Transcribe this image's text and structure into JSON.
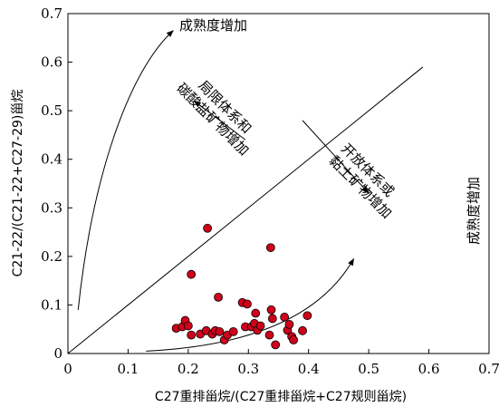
{
  "chart_data": {
    "type": "scatter",
    "title": "",
    "xlabel": "C27重排甾烷/(C27重排甾烷+C27规则甾烷)",
    "ylabel": "C21-22/(C21-22+C27-29)甾烷",
    "xlim": [
      0,
      0.7
    ],
    "ylim": [
      0,
      0.7
    ],
    "x_ticks": [
      "0",
      "0.1",
      "0.2",
      "0.3",
      "0.4",
      "0.5",
      "0.6",
      "0.7"
    ],
    "y_ticks": [
      "0",
      "0.1",
      "0.2",
      "0.3",
      "0.4",
      "0.5",
      "0.6",
      "0.7"
    ],
    "grid": false,
    "marker_color": "#d0021b",
    "points": [
      {
        "x": 0.18,
        "y": 0.052
      },
      {
        "x": 0.19,
        "y": 0.055
      },
      {
        "x": 0.195,
        "y": 0.068
      },
      {
        "x": 0.2,
        "y": 0.057
      },
      {
        "x": 0.205,
        "y": 0.038
      },
      {
        "x": 0.205,
        "y": 0.163
      },
      {
        "x": 0.22,
        "y": 0.04
      },
      {
        "x": 0.23,
        "y": 0.047
      },
      {
        "x": 0.232,
        "y": 0.258
      },
      {
        "x": 0.24,
        "y": 0.04
      },
      {
        "x": 0.245,
        "y": 0.047
      },
      {
        "x": 0.25,
        "y": 0.116
      },
      {
        "x": 0.252,
        "y": 0.045
      },
      {
        "x": 0.26,
        "y": 0.028
      },
      {
        "x": 0.265,
        "y": 0.038
      },
      {
        "x": 0.275,
        "y": 0.045
      },
      {
        "x": 0.29,
        "y": 0.105
      },
      {
        "x": 0.295,
        "y": 0.055
      },
      {
        "x": 0.298,
        "y": 0.102
      },
      {
        "x": 0.305,
        "y": 0.055
      },
      {
        "x": 0.31,
        "y": 0.062
      },
      {
        "x": 0.312,
        "y": 0.083
      },
      {
        "x": 0.315,
        "y": 0.048
      },
      {
        "x": 0.32,
        "y": 0.057
      },
      {
        "x": 0.335,
        "y": 0.038
      },
      {
        "x": 0.337,
        "y": 0.218
      },
      {
        "x": 0.338,
        "y": 0.09
      },
      {
        "x": 0.34,
        "y": 0.072
      },
      {
        "x": 0.345,
        "y": 0.018
      },
      {
        "x": 0.36,
        "y": 0.075
      },
      {
        "x": 0.365,
        "y": 0.048
      },
      {
        "x": 0.368,
        "y": 0.06
      },
      {
        "x": 0.372,
        "y": 0.035
      },
      {
        "x": 0.375,
        "y": 0.028
      },
      {
        "x": 0.39,
        "y": 0.047
      },
      {
        "x": 0.398,
        "y": 0.078
      }
    ],
    "diagonal_line": [
      [
        0,
        0
      ],
      [
        0.59,
        0.59
      ]
    ],
    "curves": [
      {
        "name": "upper-curve",
        "points": [
          [
            0.017,
            0.09
          ],
          [
            0.04,
            0.36
          ],
          [
            0.1,
            0.58
          ],
          [
            0.175,
            0.665
          ]
        ]
      },
      {
        "name": "lower-curve",
        "points": [
          [
            0.13,
            0.005
          ],
          [
            0.3,
            0.015
          ],
          [
            0.42,
            0.075
          ],
          [
            0.475,
            0.195
          ]
        ]
      }
    ],
    "arrows": [
      {
        "name": "arrow-up-left",
        "from": [
          0.295,
          0.44
        ],
        "to": [
          0.21,
          0.52
        ]
      },
      {
        "name": "arrow-down-right",
        "from": [
          0.39,
          0.48
        ],
        "to": [
          0.5,
          0.33
        ]
      }
    ],
    "annotations": {
      "top_label": "成熟度增加",
      "right_label": "成熟度增加",
      "upper_region_line1": "局限体系和",
      "upper_region_line2": "碳酸盐矿物增加",
      "lower_region_line1": "开放体系或",
      "lower_region_line2": "黏土矿物增加"
    }
  }
}
